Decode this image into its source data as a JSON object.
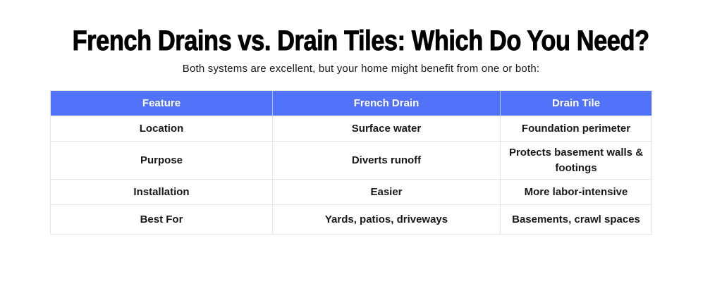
{
  "page": {
    "title": "French Drains vs. Drain Tiles: Which Do You Need?",
    "subtitle": "Both systems are excellent, but your home might benefit from one or both:"
  },
  "colors": {
    "header_bg": "#5272fa",
    "header_text": "#ffffff",
    "body_text": "#18181b",
    "border": "#e5e5e7",
    "background": "#ffffff"
  },
  "table": {
    "columns": [
      "Feature",
      "French Drain",
      "Drain Tile"
    ],
    "rows": [
      [
        "Location",
        "Surface water",
        "Foundation perimeter"
      ],
      [
        "Purpose",
        "Diverts runoff",
        "Protects basement walls & footings"
      ],
      [
        "Installation",
        "Easier",
        "More labor-intensive"
      ],
      [
        "Best For",
        "Yards, patios, driveways",
        "Basements, crawl spaces"
      ]
    ]
  }
}
